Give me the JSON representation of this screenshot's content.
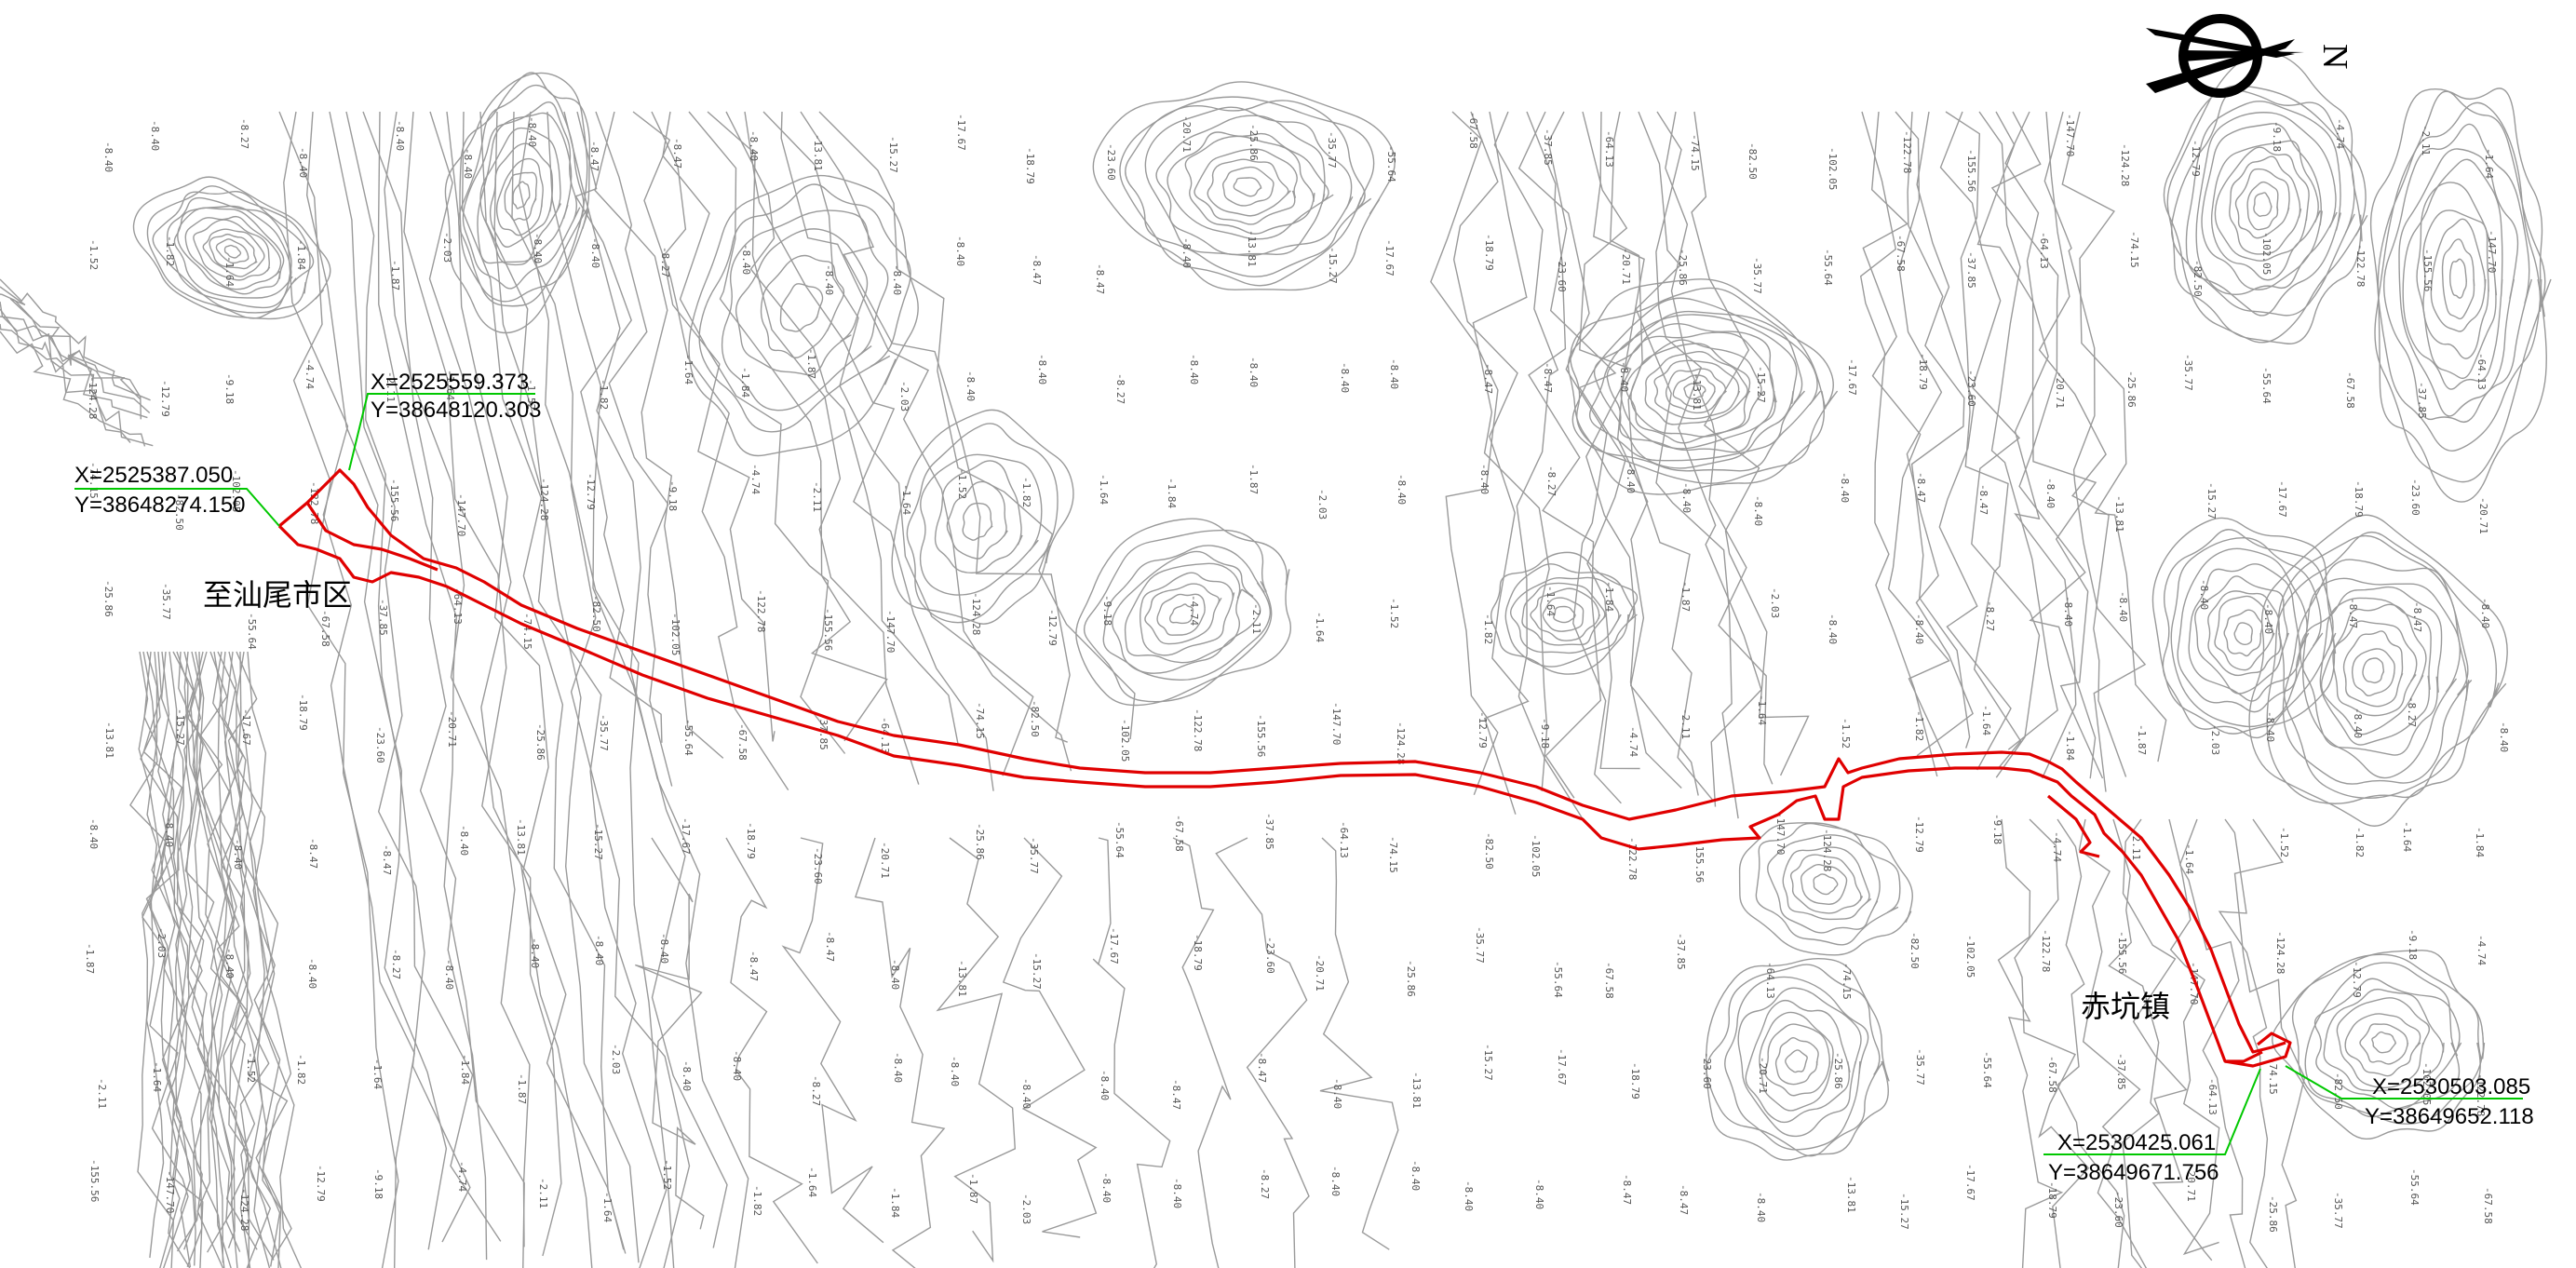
{
  "map": {
    "places": {
      "west": "至汕尾市区",
      "east": "赤坑镇"
    },
    "coordinates": {
      "nw_upper": {
        "x": "X=2525559.373",
        "y": "Y=38648120.303"
      },
      "nw_lower": {
        "x": "X=2525387.050",
        "y": "Y=38648274.150"
      },
      "se_right": {
        "x": "X=2530503.085",
        "y": "Y=38649652.118"
      },
      "se_left": {
        "x": "X=2530425.061",
        "y": "Y=38649671.756"
      }
    },
    "north_arrow": {
      "letter": "N",
      "icon": "north-arrow-icon"
    },
    "colors": {
      "road": "#e00000",
      "leader": "#00c800",
      "contour": "#9a9a9a"
    },
    "elevation_labels": [
      "-8.40",
      "-8.40",
      "-8.27",
      "-8.40",
      "-8.40",
      "-8.40",
      "-8.40",
      "-8.47",
      "-8.47",
      "-8.40",
      "-13.81",
      "-15.27",
      "-17.67",
      "-18.79",
      "-23.60",
      "-20.71",
      "-25.86",
      "-35.77",
      "-55.64",
      "-67.58",
      "-37.85",
      "-64.13",
      "-74.15",
      "-82.50",
      "-102.05",
      "-122.78",
      "-155.56",
      "-147.70",
      "-124.28",
      "-12.79",
      "-9.18",
      "-4.74",
      "-2.11",
      "-1.64",
      "-1.52",
      "-1.82",
      "-1.64",
      "-1.84",
      "-1.87",
      "-2.03"
    ]
  }
}
